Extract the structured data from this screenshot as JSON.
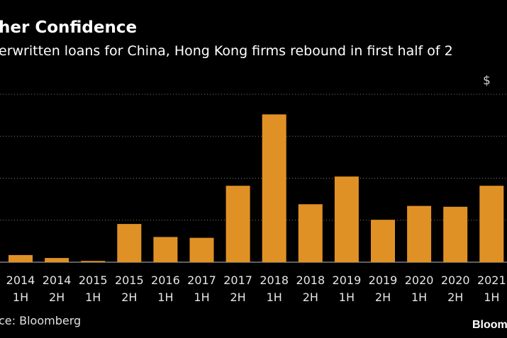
{
  "header": {
    "title": "her Confidence",
    "subtitle": "erwritten loans for China, Hong Kong firms rebound in first half of 2",
    "unit_label": "$"
  },
  "footer": {
    "source": "ce: Bloomberg",
    "logo_text": "Bloom"
  },
  "colors": {
    "background": "#000000",
    "bar": "#e09126",
    "gridline": "#7a7a7a",
    "text": "#ffffff"
  },
  "chart_data": {
    "type": "bar",
    "title": "her Confidence",
    "subtitle": "erwritten loans for China, Hong Kong firms rebound in first half of 2",
    "xlabel": "",
    "ylabel": "$",
    "ylim": [
      0,
      4
    ],
    "grid": true,
    "categories": [
      [
        "2014",
        "1H"
      ],
      [
        "2014",
        "2H"
      ],
      [
        "2015",
        "1H"
      ],
      [
        "2015",
        "2H"
      ],
      [
        "2016",
        "1H"
      ],
      [
        "2017",
        "1H"
      ],
      [
        "2017",
        "2H"
      ],
      [
        "2018",
        "1H"
      ],
      [
        "2018",
        "2H"
      ],
      [
        "2019",
        "1H"
      ],
      [
        "2019",
        "2H"
      ],
      [
        "2020",
        "1H"
      ],
      [
        "2020",
        "2H"
      ],
      [
        "2021",
        "1H"
      ]
    ],
    "values": [
      0.17,
      0.1,
      0.03,
      0.91,
      0.6,
      0.58,
      1.82,
      3.52,
      1.38,
      2.04,
      1.01,
      1.34,
      1.32,
      1.82
    ]
  }
}
